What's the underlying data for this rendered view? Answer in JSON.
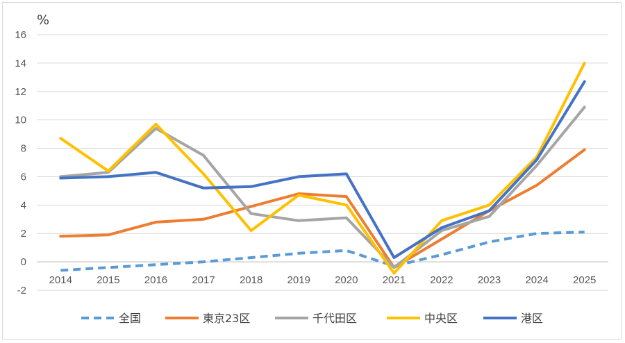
{
  "chart_data": {
    "type": "line",
    "unit_label": "%",
    "x": [
      "2014",
      "2015",
      "2016",
      "2017",
      "2018",
      "2019",
      "2020",
      "2021",
      "2022",
      "2023",
      "2024",
      "2025"
    ],
    "ylim": [
      -2,
      16
    ],
    "yticks": [
      -2,
      0,
      2,
      4,
      6,
      8,
      10,
      12,
      14,
      16
    ],
    "grid": true,
    "legend_position": "bottom",
    "series": [
      {
        "name": "全国",
        "color": "#5b9bd5",
        "dashed": true,
        "values": [
          -0.6,
          -0.4,
          -0.2,
          0.0,
          0.3,
          0.6,
          0.8,
          -0.3,
          0.5,
          1.4,
          2.0,
          2.1
        ]
      },
      {
        "name": "東京23区",
        "color": "#ed7d31",
        "dashed": false,
        "values": [
          1.8,
          1.9,
          2.8,
          3.0,
          3.9,
          4.8,
          4.6,
          -0.4,
          1.6,
          3.6,
          5.4,
          7.9
        ]
      },
      {
        "name": "千代田区",
        "color": "#a5a5a5",
        "dashed": false,
        "values": [
          6.0,
          6.3,
          9.4,
          7.5,
          3.4,
          2.9,
          3.1,
          -0.4,
          2.2,
          3.2,
          6.8,
          10.9
        ]
      },
      {
        "name": "中央区",
        "color": "#ffc000",
        "dashed": false,
        "values": [
          8.7,
          6.4,
          9.7,
          6.2,
          2.2,
          4.7,
          4.0,
          -0.8,
          2.9,
          4.0,
          7.4,
          14.0
        ]
      },
      {
        "name": "港区",
        "color": "#4472c4",
        "dashed": false,
        "values": [
          5.9,
          6.0,
          6.3,
          5.2,
          5.3,
          6.0,
          6.2,
          0.3,
          2.4,
          3.6,
          7.2,
          12.7
        ]
      }
    ]
  }
}
